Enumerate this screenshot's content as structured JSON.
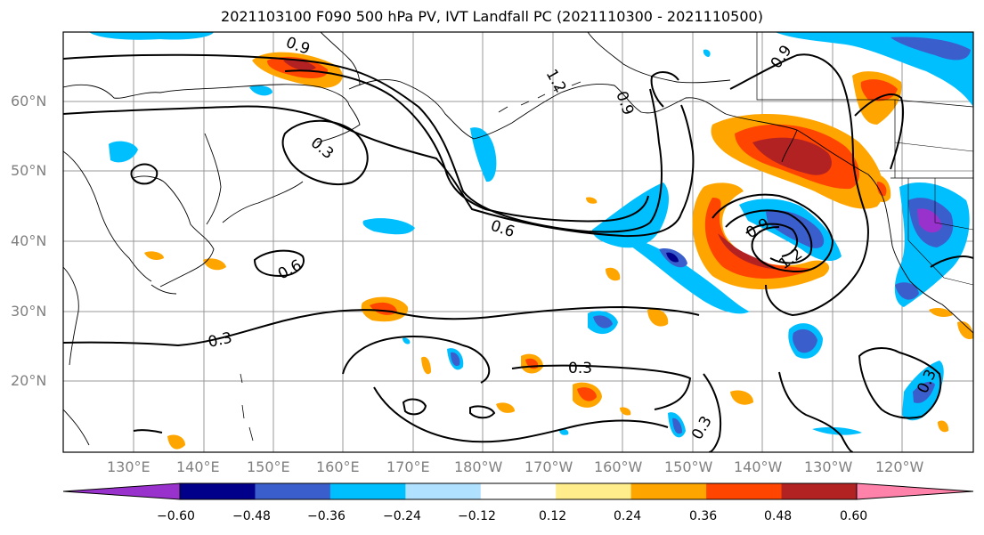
{
  "title": "2021103100 F090 500 hPa PV, IVT Landfall PC (2021110300 - 2021110500)",
  "lat_labels": [
    "60°N",
    "50°N",
    "40°N",
    "30°N",
    "20°N"
  ],
  "lon_labels": [
    "130°E",
    "140°E",
    "150°E",
    "160°E",
    "170°E",
    "180°W",
    "170°W",
    "160°W",
    "150°W",
    "140°W",
    "130°W",
    "120°W"
  ],
  "contour_labels": [
    "0.9",
    "1.2",
    "0.9",
    "0.3",
    "0.6",
    "0.6",
    "0.9",
    "1.2",
    "0.3",
    "0.3",
    "0.3",
    "0.3",
    "0.9"
  ],
  "colorbar": {
    "ticks": [
      "−0.60",
      "−0.48",
      "−0.36",
      "−0.24",
      "−0.12",
      "0.12",
      "0.24",
      "0.36",
      "0.48",
      "0.60"
    ],
    "colors": [
      "#9932CC",
      "#00008B",
      "#3A5FCD",
      "#00BFFF",
      "#B0E2FF",
      "#FFFFFF",
      "#FFEC8B",
      "#FFA500",
      "#FF4500",
      "#B22222",
      "#FF82AB"
    ]
  }
}
